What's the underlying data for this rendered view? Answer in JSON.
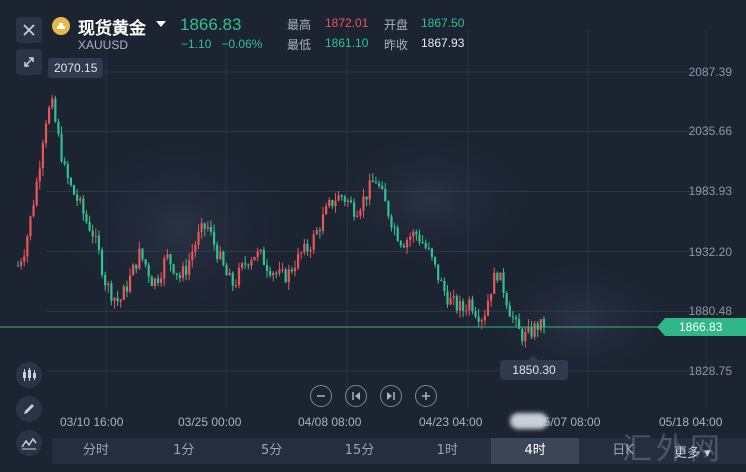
{
  "header": {
    "name": "现货黄金",
    "symbol": "XAUUSD",
    "price": "1866.83",
    "change": "−1.10",
    "change_pct": "−0.06%",
    "stats": {
      "high_label": "最高",
      "high_value": "1872.01",
      "open_label": "开盘",
      "open_value": "1867.50",
      "low_label": "最低",
      "low_value": "1861.10",
      "prev_label": "昨收",
      "prev_value": "1867.93"
    },
    "colors": {
      "up": "#e8565a",
      "down": "#2fc291",
      "accent": "#2fb787"
    }
  },
  "toolbar": {
    "icons": [
      "close-icon",
      "expand-icon",
      "candlestick-icon",
      "pencil-icon",
      "indicator-icon"
    ]
  },
  "chart": {
    "high_tip": "2070.15",
    "low_tip": "1850.30",
    "current_tag": "1866.83",
    "y_ticks": [
      "2087.39",
      "2035.66",
      "1983.93",
      "1932.20",
      "1880.48",
      "1828.75"
    ],
    "x_ticks": [
      "03/10 16:00",
      "03/25 00:00",
      "04/08 08:00",
      "04/23 04:00",
      "05/07 08:00",
      "05/18 04:00"
    ],
    "controls": [
      "zoom-out-icon",
      "prev-icon",
      "next-icon",
      "zoom-in-icon"
    ]
  },
  "chart_data": {
    "type": "candlestick",
    "timeframe": "4时",
    "y_ticks": [
      2087.39,
      2035.66,
      1983.93,
      1932.2,
      1880.48,
      1828.75
    ],
    "x_ticks": [
      "03/10 16:00",
      "03/25 00:00",
      "04/08 08:00",
      "04/23 04:00",
      "05/07 08:00",
      "05/18 04:00"
    ],
    "period_high": 2070.15,
    "period_low": 1850.3,
    "last_price": 1866.83,
    "close_path": [
      1920,
      1935,
      1965,
      2000,
      2045,
      2060,
      2030,
      2000,
      1985,
      1975,
      1960,
      1950,
      1930,
      1905,
      1895,
      1888,
      1900,
      1915,
      1930,
      1920,
      1905,
      1912,
      1928,
      1920,
      1910,
      1918,
      1935,
      1948,
      1955,
      1940,
      1925,
      1910,
      1903,
      1915,
      1925,
      1930,
      1928,
      1920,
      1915,
      1910,
      1912,
      1922,
      1930,
      1935,
      1945,
      1958,
      1970,
      1978,
      1980,
      1975,
      1968,
      1975,
      1985,
      1995,
      1980,
      1965,
      1950,
      1940,
      1945,
      1948,
      1940,
      1930,
      1915,
      1900,
      1890,
      1885,
      1882,
      1890,
      1880,
      1875,
      1898,
      1915,
      1900,
      1880,
      1865,
      1858,
      1862,
      1868,
      1866.83
    ]
  },
  "tabs": {
    "items": [
      "分时",
      "1分",
      "5分",
      "15分",
      "1时",
      "4时",
      "日K"
    ],
    "active": "4时",
    "more": "更多"
  },
  "watermark": "汇外网"
}
